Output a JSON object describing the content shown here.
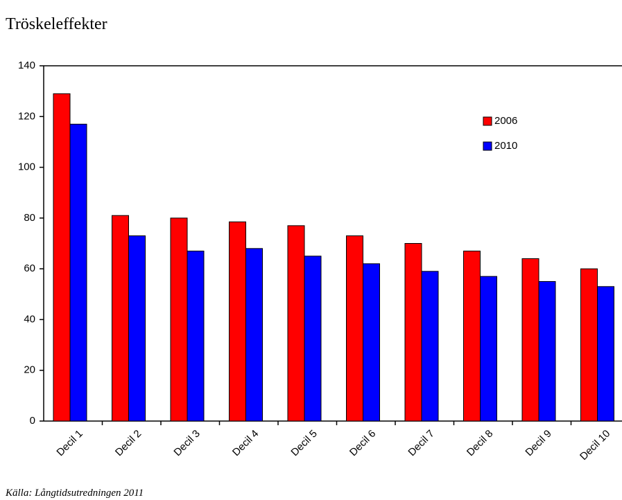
{
  "chart_data": {
    "type": "bar",
    "title": "Tröskeleffekter",
    "source": "Källa: Långtidsutredningen 2011",
    "categories": [
      "Decil 1",
      "Decil 2",
      "Decil 3",
      "Decil 4",
      "Decil 5",
      "Decil 6",
      "Decil 7",
      "Decil 8",
      "Decil 9",
      "Decil 10"
    ],
    "series": [
      {
        "name": "2006",
        "color": "#ff0000",
        "values": [
          129,
          81,
          80,
          78.5,
          77,
          73,
          70,
          67,
          64,
          60
        ]
      },
      {
        "name": "2010",
        "color": "#0000ff",
        "values": [
          117,
          73,
          67,
          68,
          65,
          62,
          59,
          57,
          55,
          53
        ]
      }
    ],
    "ylim": [
      0,
      140
    ],
    "yticks": [
      0,
      20,
      40,
      60,
      80,
      100,
      120,
      140
    ],
    "grid": false,
    "legend": "upper right"
  }
}
